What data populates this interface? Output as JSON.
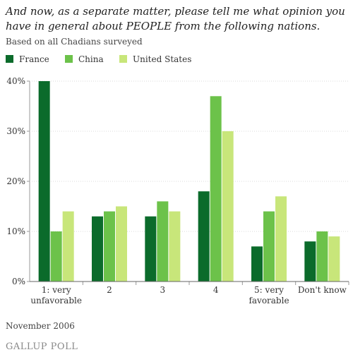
{
  "title": "And now, as a separate matter, please tell me what opinion you have in general about PEOPLE from the following nations.",
  "subtitle": "Based on all Chadians surveyed",
  "footer": {
    "date": "November 2006",
    "source_logo": "GALLUP POLL"
  },
  "colors": {
    "France": "#0b6b2b",
    "China": "#6cc24a",
    "United States": "#c8e67a",
    "axis": "#999999",
    "grid": "#d9d9d9"
  },
  "chart_data": {
    "type": "bar",
    "title": "",
    "xlabel": "",
    "ylabel": "",
    "ylim": [
      0,
      40
    ],
    "yticks": [
      "0%",
      "10%",
      "20%",
      "30%",
      "40%"
    ],
    "grid": true,
    "legend_position": "top-left",
    "categories": [
      [
        "1: very",
        "unfavorable"
      ],
      [
        "2"
      ],
      [
        "3"
      ],
      [
        "4"
      ],
      [
        "5: very",
        "favorable"
      ],
      [
        "Don't know"
      ]
    ],
    "series": [
      {
        "name": "France",
        "values": [
          40,
          13,
          13,
          18,
          7,
          8
        ]
      },
      {
        "name": "China",
        "values": [
          10,
          14,
          16,
          37,
          14,
          10
        ]
      },
      {
        "name": "United States",
        "values": [
          14,
          15,
          14,
          30,
          17,
          9
        ]
      }
    ]
  }
}
